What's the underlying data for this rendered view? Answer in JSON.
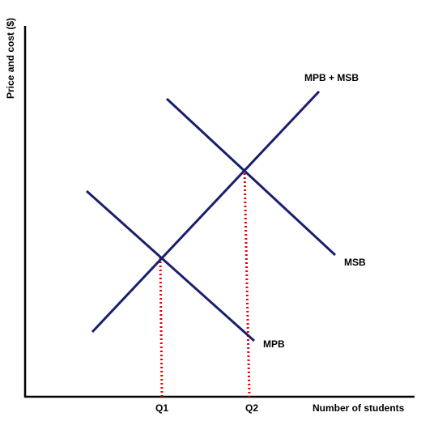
{
  "diagram": {
    "y_axis_label": "Price and cost ($)",
    "x_axis_label": "Number of students",
    "curves": {
      "mpb_msb": "MPB + MSB",
      "msb": "MSB",
      "mpb": "MPB"
    },
    "ticks": {
      "q1": "Q1",
      "q2": "Q2"
    },
    "colors": {
      "curve": "#1a1f6b",
      "dotted": "#e60000",
      "axis": "#000000"
    }
  }
}
